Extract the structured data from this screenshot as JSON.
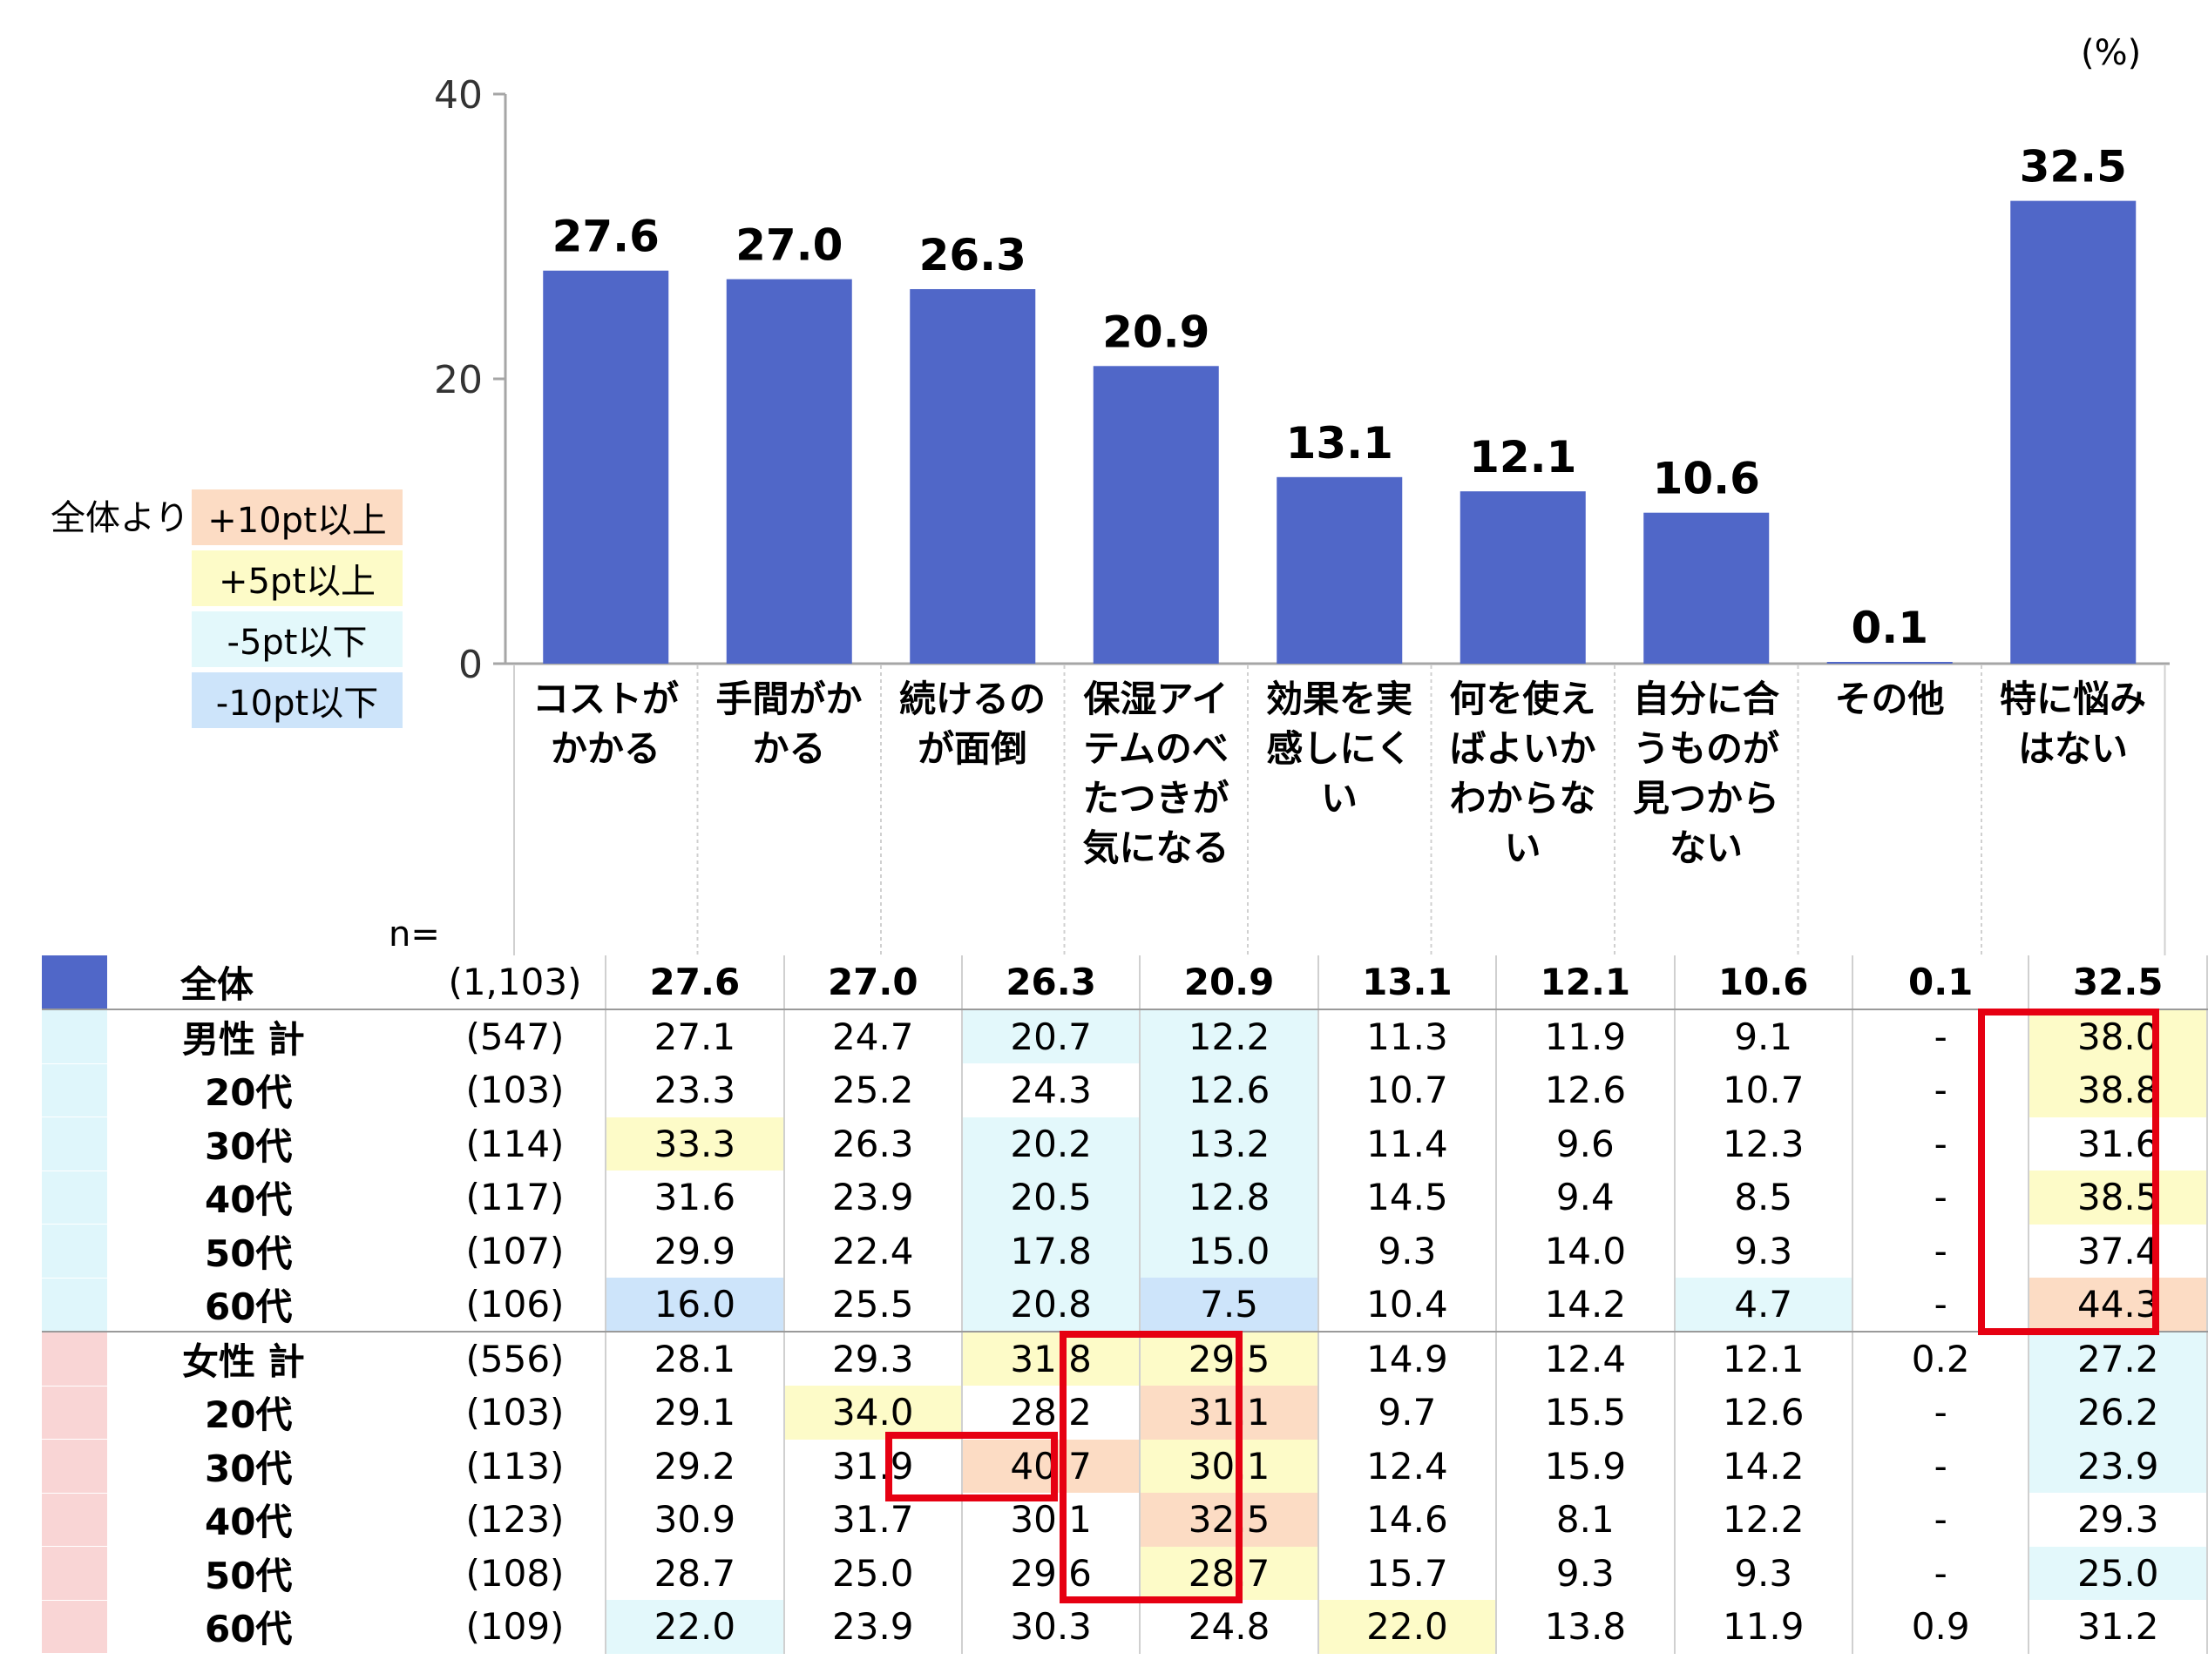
{
  "colors": {
    "bar": "#5067C8",
    "plus10": "#FCDCC4",
    "plus5": "#FDFBC8",
    "minus5": "#E3F8FB",
    "minus10": "#CDE4FA",
    "male_group": "#DFF6FB",
    "female_group": "#F9D5D5",
    "highlight": "#E60012"
  },
  "chart_data": {
    "type": "bar",
    "unit_label": "(%)",
    "categories": [
      "コストが\nかかる",
      "手間がか\nかる",
      "続けるの\nが面倒",
      "保湿アイ\nテムのべ\nたつきが\n気になる",
      "効果を実\n感しにく\nい",
      "何を使え\nばよいか\nわからな\nい",
      "自分に合\nうものが\n見つから\nない",
      "その他",
      "特に悩み\nはない"
    ],
    "values": [
      27.6,
      27.0,
      26.3,
      20.9,
      13.1,
      12.1,
      10.6,
      0.1,
      32.5
    ],
    "value_labels": [
      "27.6",
      "27.0",
      "26.3",
      "20.9",
      "13.1",
      "12.1",
      "10.6",
      "0.1",
      "32.5"
    ],
    "ylim": [
      0,
      40
    ],
    "yticks": [
      "0",
      "20",
      "40"
    ],
    "grid": false
  },
  "legend": {
    "caption": "全体より",
    "items": [
      {
        "label": "+10pt以上",
        "key": "plus10"
      },
      {
        "label": "+5pt以上",
        "key": "plus5"
      },
      {
        "label": "-5pt以下",
        "key": "minus5"
      },
      {
        "label": "-10pt以下",
        "key": "minus10"
      }
    ]
  },
  "table": {
    "n_label": "n=",
    "rows": [
      {
        "label": "全体",
        "n": "(1,103)",
        "group": "total",
        "values": [
          "27.6",
          "27.0",
          "26.3",
          "20.9",
          "13.1",
          "12.1",
          "10.6",
          "0.1",
          "32.5"
        ],
        "shade": [
          null,
          null,
          null,
          null,
          null,
          null,
          null,
          null,
          null
        ]
      },
      {
        "label": "男性 計",
        "n": "(547)",
        "group": "male",
        "main": true,
        "values": [
          "27.1",
          "24.7",
          "20.7",
          "12.2",
          "11.3",
          "11.9",
          "9.1",
          "-",
          "38.0"
        ],
        "shade": [
          null,
          null,
          "minus5",
          "minus5",
          null,
          null,
          null,
          null,
          "plus5"
        ]
      },
      {
        "label": "20代",
        "n": "(103)",
        "group": "male",
        "values": [
          "23.3",
          "25.2",
          "24.3",
          "12.6",
          "10.7",
          "12.6",
          "10.7",
          "-",
          "38.8"
        ],
        "shade": [
          null,
          null,
          null,
          "minus5",
          null,
          null,
          null,
          null,
          "plus5"
        ]
      },
      {
        "label": "30代",
        "n": "(114)",
        "group": "male",
        "values": [
          "33.3",
          "26.3",
          "20.2",
          "13.2",
          "11.4",
          "9.6",
          "12.3",
          "-",
          "31.6"
        ],
        "shade": [
          "plus5",
          null,
          "minus5",
          "minus5",
          null,
          null,
          null,
          null,
          null
        ]
      },
      {
        "label": "40代",
        "n": "(117)",
        "group": "male",
        "values": [
          "31.6",
          "23.9",
          "20.5",
          "12.8",
          "14.5",
          "9.4",
          "8.5",
          "-",
          "38.5"
        ],
        "shade": [
          null,
          null,
          "minus5",
          "minus5",
          null,
          null,
          null,
          null,
          "plus5"
        ]
      },
      {
        "label": "50代",
        "n": "(107)",
        "group": "male",
        "values": [
          "29.9",
          "22.4",
          "17.8",
          "15.0",
          "9.3",
          "14.0",
          "9.3",
          "-",
          "37.4"
        ],
        "shade": [
          null,
          null,
          "minus5",
          "minus5",
          null,
          null,
          null,
          null,
          null
        ]
      },
      {
        "label": "60代",
        "n": "(106)",
        "group": "male",
        "values": [
          "16.0",
          "25.5",
          "20.8",
          "7.5",
          "10.4",
          "14.2",
          "4.7",
          "-",
          "44.3"
        ],
        "shade": [
          "minus10",
          null,
          "minus5",
          "minus10",
          null,
          null,
          "minus5",
          null,
          "plus10"
        ]
      },
      {
        "label": "女性 計",
        "n": "(556)",
        "group": "female",
        "main": true,
        "values": [
          "28.1",
          "29.3",
          "31.8",
          "29.5",
          "14.9",
          "12.4",
          "12.1",
          "0.2",
          "27.2"
        ],
        "shade": [
          null,
          null,
          "plus5",
          "plus5",
          null,
          null,
          null,
          null,
          "minus5"
        ]
      },
      {
        "label": "20代",
        "n": "(103)",
        "group": "female",
        "values": [
          "29.1",
          "34.0",
          "28.2",
          "31.1",
          "9.7",
          "15.5",
          "12.6",
          "-",
          "26.2"
        ],
        "shade": [
          null,
          "plus5",
          null,
          "plus10",
          null,
          null,
          null,
          null,
          "minus5"
        ]
      },
      {
        "label": "30代",
        "n": "(113)",
        "group": "female",
        "values": [
          "29.2",
          "31.9",
          "40.7",
          "30.1",
          "12.4",
          "15.9",
          "14.2",
          "-",
          "23.9"
        ],
        "shade": [
          null,
          null,
          "plus10",
          "plus5",
          null,
          null,
          null,
          null,
          "minus5"
        ]
      },
      {
        "label": "40代",
        "n": "(123)",
        "group": "female",
        "values": [
          "30.9",
          "31.7",
          "30.1",
          "32.5",
          "14.6",
          "8.1",
          "12.2",
          "-",
          "29.3"
        ],
        "shade": [
          null,
          null,
          null,
          "plus10",
          null,
          null,
          null,
          null,
          null
        ]
      },
      {
        "label": "50代",
        "n": "(108)",
        "group": "female",
        "values": [
          "28.7",
          "25.0",
          "29.6",
          "28.7",
          "15.7",
          "9.3",
          "9.3",
          "-",
          "25.0"
        ],
        "shade": [
          null,
          null,
          null,
          "plus5",
          null,
          null,
          null,
          null,
          "minus5"
        ]
      },
      {
        "label": "60代",
        "n": "(109)",
        "group": "female",
        "values": [
          "22.0",
          "23.9",
          "30.3",
          "24.8",
          "22.0",
          "13.8",
          "11.9",
          "0.9",
          "31.2"
        ],
        "shade": [
          "minus5",
          null,
          null,
          null,
          "plus5",
          null,
          null,
          null,
          null
        ]
      }
    ]
  }
}
